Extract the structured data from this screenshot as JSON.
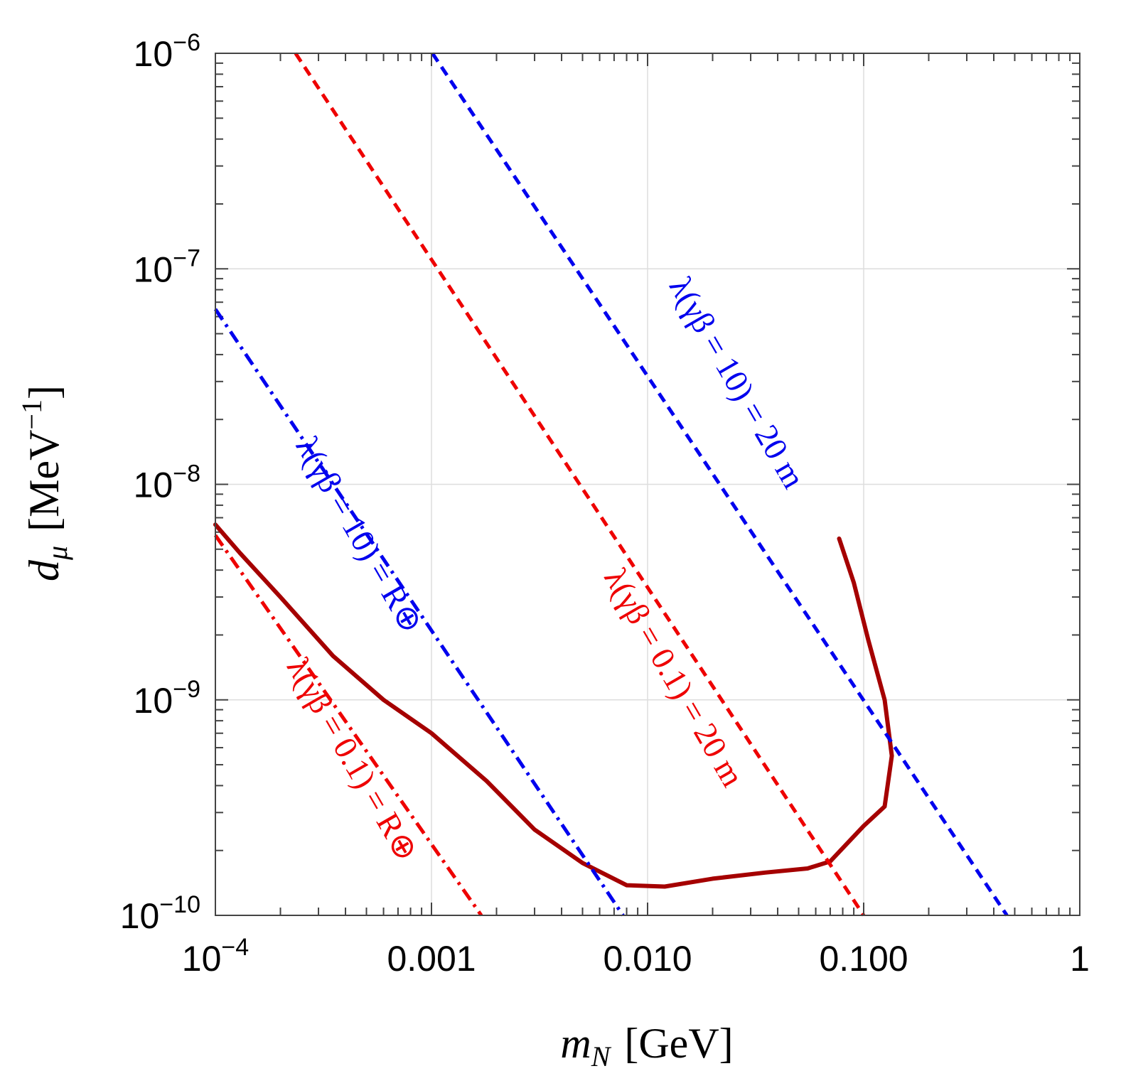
{
  "chart_data": {
    "type": "line",
    "xscale": "log",
    "yscale": "log",
    "xlim": [
      0.0001,
      1
    ],
    "ylim": [
      1e-10,
      1e-06
    ],
    "grid": true,
    "xlabel": {
      "main": "m",
      "sub": "N",
      "unit": "[GeV]"
    },
    "ylabel": {
      "main": "d",
      "sub": "μ",
      "unit_prefix": "[MeV",
      "unit_exp": "−1",
      "unit_suffix": "]"
    },
    "xticks": [
      {
        "value": 0.0001,
        "base": "10",
        "exp": "−4"
      },
      {
        "value": 0.001,
        "label": "0.001"
      },
      {
        "value": 0.01,
        "label": "0.010"
      },
      {
        "value": 0.1,
        "label": "0.100"
      },
      {
        "value": 1,
        "label": "1"
      }
    ],
    "yticks": [
      {
        "value": 1e-06,
        "base": "10",
        "exp": "−6"
      },
      {
        "value": 1e-07,
        "base": "10",
        "exp": "−7"
      },
      {
        "value": 1e-08,
        "base": "10",
        "exp": "−8"
      },
      {
        "value": 1e-09,
        "base": "10",
        "exp": "−9"
      },
      {
        "value": 1e-10,
        "base": "10",
        "exp": "−10"
      }
    ],
    "series": [
      {
        "name": "bound",
        "color": "#a50000",
        "style": "solid",
        "points": [
          [
            0.0001,
            6.5e-09
          ],
          [
            0.00013,
            4.8e-09
          ],
          [
            0.0002,
            3e-09
          ],
          [
            0.00035,
            1.6e-09
          ],
          [
            0.0006,
            1e-09
          ],
          [
            0.001,
            7e-10
          ],
          [
            0.0018,
            4.2e-10
          ],
          [
            0.003,
            2.5e-10
          ],
          [
            0.005,
            1.75e-10
          ],
          [
            0.008,
            1.38e-10
          ],
          [
            0.012,
            1.36e-10
          ],
          [
            0.02,
            1.48e-10
          ],
          [
            0.035,
            1.58e-10
          ],
          [
            0.055,
            1.65e-10
          ],
          [
            0.07,
            1.78e-10
          ],
          [
            0.1,
            2.6e-10
          ],
          [
            0.125,
            3.2e-10
          ],
          [
            0.135,
            5.5e-10
          ],
          [
            0.125,
            1e-09
          ],
          [
            0.105,
            1.9e-09
          ],
          [
            0.09,
            3.5e-09
          ],
          [
            0.077,
            5.6e-09
          ]
        ]
      },
      {
        "name": "blue-dashed",
        "color": "#0000ee",
        "style": "dashed",
        "points": [
          [
            0.00101,
            1e-06
          ],
          [
            0.46,
            1e-10
          ]
        ]
      },
      {
        "name": "red-dashed",
        "color": "#ee0000",
        "style": "dashed",
        "points": [
          [
            0.000235,
            1e-06
          ],
          [
            0.1,
            1e-10
          ]
        ]
      },
      {
        "name": "blue-dashdot",
        "color": "#0000ee",
        "style": "dashdot",
        "points": [
          [
            0.0001,
            6.5e-08
          ],
          [
            0.0077,
            1e-10
          ]
        ]
      },
      {
        "name": "red-dashdot",
        "color": "#ee0000",
        "style": "dashdot",
        "points": [
          [
            0.0001,
            5.8e-09
          ],
          [
            0.0017,
            1e-10
          ]
        ]
      }
    ],
    "annotations": [
      {
        "text": "λ(γβ = 10) = 20 m",
        "color": "#0000ee",
        "x": 0.0235,
        "y": 2.8e-08,
        "rotate": 60
      },
      {
        "text": "λ(γβ = 0.1) = 20 m",
        "color": "#ee0000",
        "x": 0.012,
        "y": 1.2e-09,
        "rotate": 60
      },
      {
        "text": "λ(γβ = 10) = R⊕",
        "color": "#0000ee",
        "x": 0.00042,
        "y": 5.5e-09,
        "rotate": 60
      },
      {
        "text": "λ(γβ = 0.1) = R⊕",
        "color": "#ee0000",
        "x": 0.00039,
        "y": 5e-10,
        "rotate": 60
      }
    ]
  }
}
